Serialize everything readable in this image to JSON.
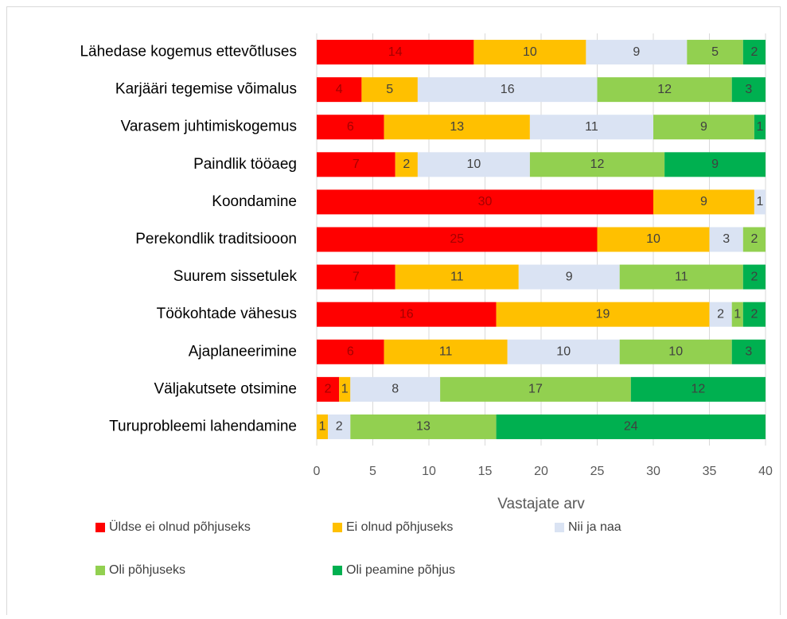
{
  "chart_data": {
    "type": "stacked-barh",
    "categories": [
      "Lähedase kogemus ettevõtluses",
      "Karjääri tegemise võimalus",
      "Varasem juhtimiskogemus",
      "Paindlik tööaeg",
      "Koondamine",
      "Perekondlik traditsiooon",
      "Suurem sissetulek",
      "Töökohtade vähesus",
      "Ajaplaneerimine",
      "Väljakutsete otsimine",
      "Turuprobleemi lahendamine"
    ],
    "series": [
      {
        "name": "Üldse ei olnud põhjuseks",
        "color": "#ff0000",
        "values": [
          14,
          4,
          6,
          7,
          30,
          25,
          7,
          16,
          6,
          2,
          null
        ]
      },
      {
        "name": "Ei olnud põhjuseks",
        "color": "#ffc000",
        "values": [
          10,
          5,
          13,
          2,
          9,
          10,
          11,
          19,
          11,
          1,
          1
        ]
      },
      {
        "name": "Nii ja naa",
        "color": "#dae3f3",
        "values": [
          9,
          16,
          11,
          10,
          1,
          3,
          9,
          2,
          10,
          8,
          2
        ]
      },
      {
        "name": "Oli põhjuseks",
        "color": "#92d050",
        "values": [
          5,
          12,
          9,
          12,
          null,
          2,
          11,
          1,
          10,
          17,
          13
        ]
      },
      {
        "name": "Oli peamine põhjus",
        "color": "#00b050",
        "values": [
          2,
          3,
          1,
          9,
          null,
          null,
          2,
          2,
          3,
          12,
          24
        ]
      }
    ],
    "xlabel": "Vastajate arv",
    "xlim": [
      0,
      40
    ],
    "xticks": [
      0,
      5,
      10,
      15,
      20,
      25,
      30,
      35,
      40
    ],
    "grid": true
  }
}
